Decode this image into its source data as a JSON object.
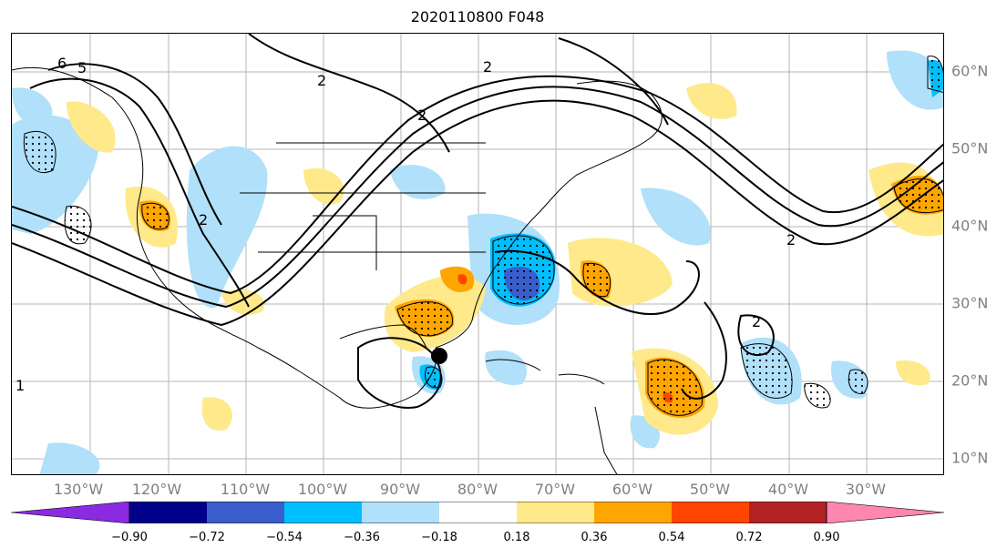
{
  "title": "2020110800 F048",
  "map": {
    "type": "forecast-anomaly-map",
    "lon_labels": [
      "130°W",
      "120°W",
      "110°W",
      "100°W",
      "90°W",
      "80°W",
      "70°W",
      "60°W",
      "50°W",
      "40°W",
      "30°W"
    ],
    "lat_labels": [
      "60°N",
      "50°N",
      "40°N",
      "30°N",
      "20°N",
      "10°N"
    ],
    "contour_labels": [
      "6",
      "5",
      "2",
      "2",
      "2",
      "2",
      "2",
      "2",
      "1"
    ],
    "marker": "storm-center-dot"
  },
  "colorbar": {
    "tick_labels": [
      "−0.90",
      "−0.72",
      "−0.54",
      "−0.36",
      "−0.18",
      "0.18",
      "0.36",
      "0.54",
      "0.72",
      "0.90"
    ],
    "colors": [
      "#8a2be2",
      "#00008b",
      "#3a5fcd",
      "#00bfff",
      "#b0e0fa",
      "#ffffff",
      "#ffe98a",
      "#ffa500",
      "#ff4500",
      "#b22222",
      "#ff86b0"
    ]
  }
}
